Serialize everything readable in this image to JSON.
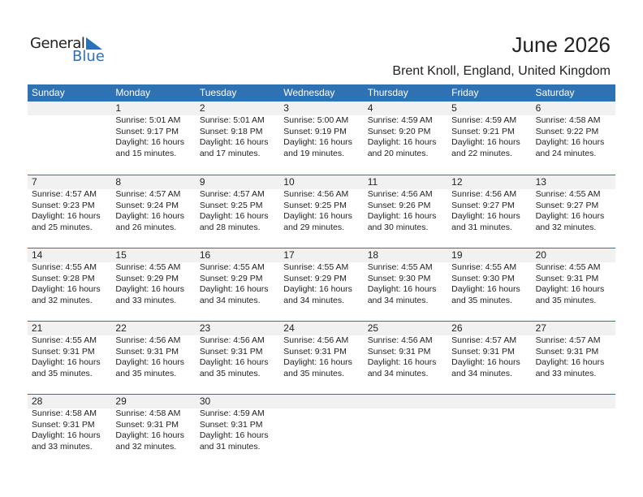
{
  "logo": {
    "general": "General",
    "blue": "Blue"
  },
  "title": "June 2026",
  "location": "Brent Knoll, England, United Kingdom",
  "colors": {
    "header": "#2e72b4",
    "band": "#f1f1f1",
    "brand": "#2a72b5"
  },
  "weekdays": [
    "Sunday",
    "Monday",
    "Tuesday",
    "Wednesday",
    "Thursday",
    "Friday",
    "Saturday"
  ],
  "labels": {
    "sunrise": "Sunrise:",
    "sunset": "Sunset:",
    "daylight": "Daylight:"
  },
  "weeks": [
    [
      null,
      {
        "day": "1",
        "sunrise": "Sunrise: 5:01 AM",
        "sunset": "Sunset: 9:17 PM",
        "daylight1": "Daylight: 16 hours",
        "daylight2": "and 15 minutes."
      },
      {
        "day": "2",
        "sunrise": "Sunrise: 5:01 AM",
        "sunset": "Sunset: 9:18 PM",
        "daylight1": "Daylight: 16 hours",
        "daylight2": "and 17 minutes."
      },
      {
        "day": "3",
        "sunrise": "Sunrise: 5:00 AM",
        "sunset": "Sunset: 9:19 PM",
        "daylight1": "Daylight: 16 hours",
        "daylight2": "and 19 minutes."
      },
      {
        "day": "4",
        "sunrise": "Sunrise: 4:59 AM",
        "sunset": "Sunset: 9:20 PM",
        "daylight1": "Daylight: 16 hours",
        "daylight2": "and 20 minutes."
      },
      {
        "day": "5",
        "sunrise": "Sunrise: 4:59 AM",
        "sunset": "Sunset: 9:21 PM",
        "daylight1": "Daylight: 16 hours",
        "daylight2": "and 22 minutes."
      },
      {
        "day": "6",
        "sunrise": "Sunrise: 4:58 AM",
        "sunset": "Sunset: 9:22 PM",
        "daylight1": "Daylight: 16 hours",
        "daylight2": "and 24 minutes."
      }
    ],
    [
      {
        "day": "7",
        "sunrise": "Sunrise: 4:57 AM",
        "sunset": "Sunset: 9:23 PM",
        "daylight1": "Daylight: 16 hours",
        "daylight2": "and 25 minutes."
      },
      {
        "day": "8",
        "sunrise": "Sunrise: 4:57 AM",
        "sunset": "Sunset: 9:24 PM",
        "daylight1": "Daylight: 16 hours",
        "daylight2": "and 26 minutes."
      },
      {
        "day": "9",
        "sunrise": "Sunrise: 4:57 AM",
        "sunset": "Sunset: 9:25 PM",
        "daylight1": "Daylight: 16 hours",
        "daylight2": "and 28 minutes."
      },
      {
        "day": "10",
        "sunrise": "Sunrise: 4:56 AM",
        "sunset": "Sunset: 9:25 PM",
        "daylight1": "Daylight: 16 hours",
        "daylight2": "and 29 minutes."
      },
      {
        "day": "11",
        "sunrise": "Sunrise: 4:56 AM",
        "sunset": "Sunset: 9:26 PM",
        "daylight1": "Daylight: 16 hours",
        "daylight2": "and 30 minutes."
      },
      {
        "day": "12",
        "sunrise": "Sunrise: 4:56 AM",
        "sunset": "Sunset: 9:27 PM",
        "daylight1": "Daylight: 16 hours",
        "daylight2": "and 31 minutes."
      },
      {
        "day": "13",
        "sunrise": "Sunrise: 4:55 AM",
        "sunset": "Sunset: 9:27 PM",
        "daylight1": "Daylight: 16 hours",
        "daylight2": "and 32 minutes."
      }
    ],
    [
      {
        "day": "14",
        "sunrise": "Sunrise: 4:55 AM",
        "sunset": "Sunset: 9:28 PM",
        "daylight1": "Daylight: 16 hours",
        "daylight2": "and 32 minutes."
      },
      {
        "day": "15",
        "sunrise": "Sunrise: 4:55 AM",
        "sunset": "Sunset: 9:29 PM",
        "daylight1": "Daylight: 16 hours",
        "daylight2": "and 33 minutes."
      },
      {
        "day": "16",
        "sunrise": "Sunrise: 4:55 AM",
        "sunset": "Sunset: 9:29 PM",
        "daylight1": "Daylight: 16 hours",
        "daylight2": "and 34 minutes."
      },
      {
        "day": "17",
        "sunrise": "Sunrise: 4:55 AM",
        "sunset": "Sunset: 9:29 PM",
        "daylight1": "Daylight: 16 hours",
        "daylight2": "and 34 minutes."
      },
      {
        "day": "18",
        "sunrise": "Sunrise: 4:55 AM",
        "sunset": "Sunset: 9:30 PM",
        "daylight1": "Daylight: 16 hours",
        "daylight2": "and 34 minutes."
      },
      {
        "day": "19",
        "sunrise": "Sunrise: 4:55 AM",
        "sunset": "Sunset: 9:30 PM",
        "daylight1": "Daylight: 16 hours",
        "daylight2": "and 35 minutes."
      },
      {
        "day": "20",
        "sunrise": "Sunrise: 4:55 AM",
        "sunset": "Sunset: 9:31 PM",
        "daylight1": "Daylight: 16 hours",
        "daylight2": "and 35 minutes."
      }
    ],
    [
      {
        "day": "21",
        "sunrise": "Sunrise: 4:55 AM",
        "sunset": "Sunset: 9:31 PM",
        "daylight1": "Daylight: 16 hours",
        "daylight2": "and 35 minutes."
      },
      {
        "day": "22",
        "sunrise": "Sunrise: 4:56 AM",
        "sunset": "Sunset: 9:31 PM",
        "daylight1": "Daylight: 16 hours",
        "daylight2": "and 35 minutes."
      },
      {
        "day": "23",
        "sunrise": "Sunrise: 4:56 AM",
        "sunset": "Sunset: 9:31 PM",
        "daylight1": "Daylight: 16 hours",
        "daylight2": "and 35 minutes."
      },
      {
        "day": "24",
        "sunrise": "Sunrise: 4:56 AM",
        "sunset": "Sunset: 9:31 PM",
        "daylight1": "Daylight: 16 hours",
        "daylight2": "and 35 minutes."
      },
      {
        "day": "25",
        "sunrise": "Sunrise: 4:56 AM",
        "sunset": "Sunset: 9:31 PM",
        "daylight1": "Daylight: 16 hours",
        "daylight2": "and 34 minutes."
      },
      {
        "day": "26",
        "sunrise": "Sunrise: 4:57 AM",
        "sunset": "Sunset: 9:31 PM",
        "daylight1": "Daylight: 16 hours",
        "daylight2": "and 34 minutes."
      },
      {
        "day": "27",
        "sunrise": "Sunrise: 4:57 AM",
        "sunset": "Sunset: 9:31 PM",
        "daylight1": "Daylight: 16 hours",
        "daylight2": "and 33 minutes."
      }
    ],
    [
      {
        "day": "28",
        "sunrise": "Sunrise: 4:58 AM",
        "sunset": "Sunset: 9:31 PM",
        "daylight1": "Daylight: 16 hours",
        "daylight2": "and 33 minutes."
      },
      {
        "day": "29",
        "sunrise": "Sunrise: 4:58 AM",
        "sunset": "Sunset: 9:31 PM",
        "daylight1": "Daylight: 16 hours",
        "daylight2": "and 32 minutes."
      },
      {
        "day": "30",
        "sunrise": "Sunrise: 4:59 AM",
        "sunset": "Sunset: 9:31 PM",
        "daylight1": "Daylight: 16 hours",
        "daylight2": "and 31 minutes."
      },
      null,
      null,
      null,
      null
    ]
  ]
}
